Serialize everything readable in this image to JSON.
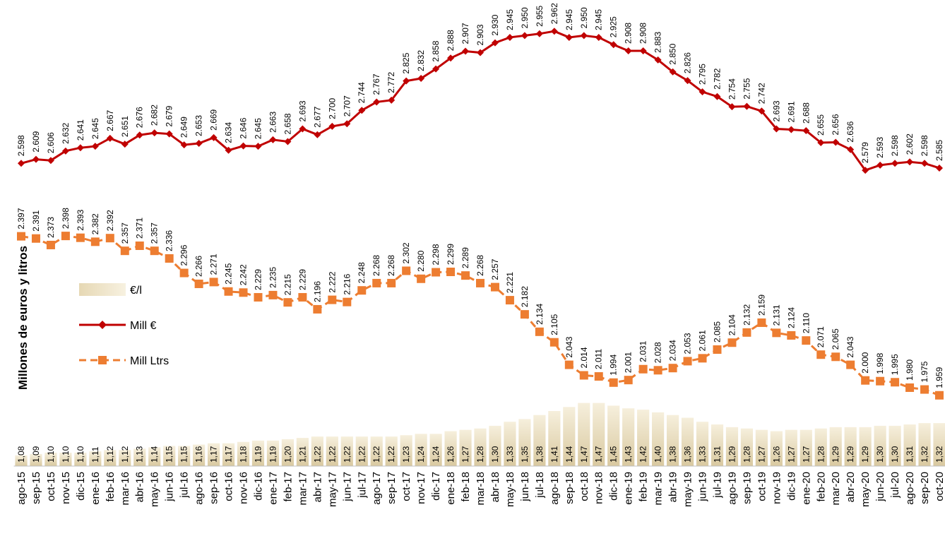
{
  "chart_data": {
    "type": "combo",
    "y_axis_label": "Millones de euros y litros",
    "categories": [
      "ago-15",
      "sep-15",
      "oct-15",
      "nov-15",
      "dic-15",
      "ene-16",
      "feb-16",
      "mar-16",
      "abr-16",
      "may-16",
      "jun-16",
      "jul-16",
      "ago-16",
      "sep-16",
      "oct-16",
      "nov-16",
      "dic-16",
      "ene-17",
      "feb-17",
      "mar-17",
      "abr-17",
      "may-17",
      "jun-17",
      "jul-17",
      "ago-17",
      "sep-17",
      "oct-17",
      "nov-17",
      "dic-17",
      "ene-18",
      "feb-18",
      "mar-18",
      "abr-18",
      "may-18",
      "jun-18",
      "jul-18",
      "ago-18",
      "sep-18",
      "oct-18",
      "nov-18",
      "dic-18",
      "ene-19",
      "feb-19",
      "mar-19",
      "abr-19",
      "may-19",
      "jun-19",
      "jul-19",
      "ago-19",
      "sep-19",
      "oct-19",
      "nov-19",
      "dic-19",
      "ene-20",
      "feb-20",
      "mar-20",
      "abr-20",
      "may-20",
      "jun-20",
      "jul-20",
      "ago-20",
      "sep-20",
      "oct-20"
    ],
    "ylim": [
      1764,
      3048
    ],
    "y2lim": [
      1.0,
      4.47
    ],
    "legend": "left",
    "series": [
      {
        "name": "€/l",
        "type": "bar",
        "axis": "y2",
        "color": "#d9c9a0",
        "values": [
          1.08,
          1.09,
          1.1,
          1.1,
          1.1,
          1.11,
          1.12,
          1.12,
          1.13,
          1.14,
          1.15,
          1.15,
          1.16,
          1.17,
          1.17,
          1.18,
          1.19,
          1.19,
          1.2,
          1.21,
          1.22,
          1.22,
          1.22,
          1.22,
          1.22,
          1.22,
          1.23,
          1.24,
          1.24,
          1.26,
          1.27,
          1.28,
          1.3,
          1.33,
          1.35,
          1.38,
          1.41,
          1.44,
          1.47,
          1.47,
          1.45,
          1.43,
          1.42,
          1.4,
          1.38,
          1.36,
          1.33,
          1.31,
          1.29,
          1.28,
          1.27,
          1.26,
          1.27,
          1.27,
          1.28,
          1.29,
          1.29,
          1.29,
          1.3,
          1.3,
          1.31,
          1.32,
          1.32
        ],
        "value_labels": [
          "1,08",
          "1,09",
          "1,10",
          "1,10",
          "1,10",
          "1,11",
          "1,12",
          "1,12",
          "1,13",
          "1,14",
          "1,15",
          "1,15",
          "1,16",
          "1,17",
          "1,17",
          "1,18",
          "1,19",
          "1,19",
          "1,20",
          "1,21",
          "1,22",
          "1,22",
          "1,22",
          "1,22",
          "1,22",
          "1,22",
          "1,23",
          "1,24",
          "1,24",
          "1,26",
          "1,27",
          "1,28",
          "1,30",
          "1,33",
          "1,35",
          "1,38",
          "1,41",
          "1,44",
          "1,47",
          "1,47",
          "1,45",
          "1,43",
          "1,42",
          "1,40",
          "1,38",
          "1,36",
          "1,33",
          "1,31",
          "1,29",
          "1,28",
          "1,27",
          "1,26",
          "1,27",
          "1,27",
          "1,28",
          "1,29",
          "1,29",
          "1,29",
          "1,30",
          "1,30",
          "1,31",
          "1,32",
          "1,32"
        ]
      },
      {
        "name": "Mill €",
        "type": "line",
        "color": "#c00000",
        "marker": "diamond",
        "dashed": false,
        "values": [
          2598,
          2609,
          2606,
          2632,
          2641,
          2645,
          2667,
          2651,
          2676,
          2682,
          2679,
          2649,
          2653,
          2669,
          2634,
          2646,
          2645,
          2663,
          2658,
          2693,
          2677,
          2700,
          2707,
          2744,
          2767,
          2772,
          2825,
          2832,
          2858,
          2888,
          2907,
          2903,
          2930,
          2945,
          2950,
          2955,
          2962,
          2945,
          2950,
          2945,
          2925,
          2908,
          2908,
          2883,
          2850,
          2826,
          2795,
          2782,
          2754,
          2755,
          2742,
          2693,
          2691,
          2688,
          2655,
          2656,
          2636,
          2579,
          2593,
          2598,
          2602,
          2598,
          2585
        ],
        "value_labels": [
          "2.598",
          "2.609",
          "2.606",
          "2.632",
          "2.641",
          "2.645",
          "2.667",
          "2.651",
          "2.676",
          "2.682",
          "2.679",
          "2.649",
          "2.653",
          "2.669",
          "2.634",
          "2.646",
          "2.645",
          "2.663",
          "2.658",
          "2.693",
          "2.677",
          "2.700",
          "2.707",
          "2.744",
          "2.767",
          "2.772",
          "2.825",
          "2.832",
          "2.858",
          "2.888",
          "2.907",
          "2.903",
          "2.930",
          "2.945",
          "2.950",
          "2.955",
          "2.962",
          "2.945",
          "2.950",
          "2.945",
          "2.925",
          "2.908",
          "2.908",
          "2.883",
          "2.850",
          "2.826",
          "2.795",
          "2.782",
          "2.754",
          "2.755",
          "2.742",
          "2.693",
          "2.691",
          "2.688",
          "2.655",
          "2.656",
          "2.636",
          "2.579",
          "2.593",
          "2.598",
          "2.602",
          "2.598",
          "2.585"
        ]
      },
      {
        "name": "Mill Ltrs",
        "type": "line",
        "color": "#ed7d31",
        "marker": "square",
        "dashed": true,
        "values": [
          2397,
          2391,
          2373,
          2398,
          2393,
          2382,
          2392,
          2357,
          2371,
          2357,
          2336,
          2296,
          2266,
          2271,
          2245,
          2242,
          2229,
          2235,
          2215,
          2229,
          2196,
          2222,
          2216,
          2248,
          2268,
          2268,
          2302,
          2280,
          2298,
          2299,
          2289,
          2268,
          2257,
          2221,
          2182,
          2134,
          2105,
          2043,
          2014,
          2011,
          1994,
          2001,
          2031,
          2028,
          2034,
          2053,
          2061,
          2085,
          2104,
          2132,
          2159,
          2131,
          2124,
          2110,
          2071,
          2065,
          2043,
          2000,
          1998,
          1995,
          1980,
          1975,
          1959
        ],
        "value_labels": [
          "2.397",
          "2.391",
          "2.373",
          "2.398",
          "2.393",
          "2.382",
          "2.392",
          "2.357",
          "2.371",
          "2.357",
          "2.336",
          "2.296",
          "2.266",
          "2.271",
          "2.245",
          "2.242",
          "2.229",
          "2.235",
          "2.215",
          "2.229",
          "2.196",
          "2.222",
          "2.216",
          "2.248",
          "2.268",
          "2.268",
          "2.302",
          "2.280",
          "2.298",
          "2.299",
          "2.289",
          "2.268",
          "2.257",
          "2.221",
          "2.182",
          "2.134",
          "2.105",
          "2.043",
          "2.014",
          "2.011",
          "1.994",
          "2.001",
          "2.031",
          "2.028",
          "2.034",
          "2.053",
          "2.061",
          "2.085",
          "2.104",
          "2.132",
          "2.159",
          "2.131",
          "2.124",
          "2.110",
          "2.071",
          "2.065",
          "2.043",
          "2.000",
          "1.998",
          "1.995",
          "1.980",
          "1.975",
          "1.959"
        ]
      }
    ]
  }
}
